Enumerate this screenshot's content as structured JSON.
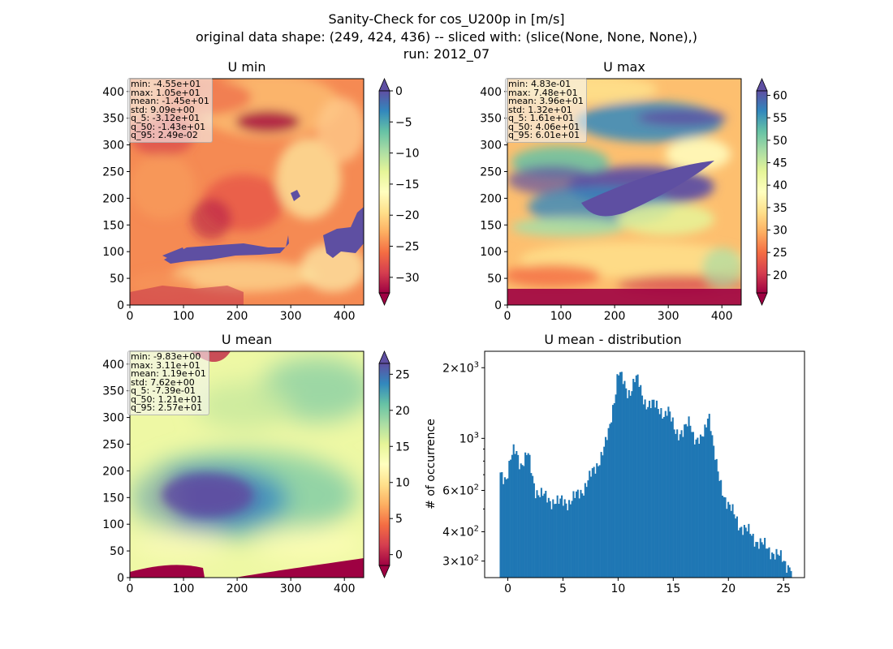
{
  "figure": {
    "suptitle": [
      "Sanity-Check for cos_U200p in [m/s]",
      "original data shape: (249, 424, 436) -- sliced with: (slice(None, None, None),)",
      "run: 2012_07"
    ]
  },
  "colors": {
    "spectral_stops": [
      "#9e0142",
      "#d53e4f",
      "#f46d43",
      "#fdae61",
      "#fee08b",
      "#ffffbf",
      "#e6f598",
      "#abdda4",
      "#66c2a5",
      "#3288bd",
      "#5e4fa2"
    ],
    "hist_bar": "#1f77b4",
    "axes_edge": "#000000"
  },
  "chart_data": [
    {
      "id": "umin",
      "type": "heatmap",
      "title": "U min",
      "xlim": [
        0,
        436
      ],
      "ylim": [
        0,
        424
      ],
      "xticks": [
        0,
        100,
        200,
        300,
        400
      ],
      "yticks": [
        0,
        50,
        100,
        150,
        200,
        250,
        300,
        350,
        400
      ],
      "colormap": "Spectral",
      "colorbar": {
        "vmin": -32.5,
        "vmax": 0,
        "ticks": [
          0,
          -5,
          -10,
          -15,
          -20,
          -25,
          -30
        ],
        "tick_labels": [
          "0",
          "−5",
          "−10",
          "−15",
          "−20",
          "−25",
          "−30"
        ],
        "extend": "both"
      },
      "stats": [
        "min: -4.55e+01",
        "max: 1.05e+01",
        "mean: -1.45e+01",
        "std: 9.09e+00",
        "q_5: -3.12e+01",
        "q_50: -1.43e+01",
        "q_95: 2.49e-02"
      ]
    },
    {
      "id": "umax",
      "type": "heatmap",
      "title": "U max",
      "xlim": [
        0,
        436
      ],
      "ylim": [
        0,
        424
      ],
      "xticks": [
        0,
        100,
        200,
        300,
        400
      ],
      "yticks": [
        0,
        50,
        100,
        150,
        200,
        250,
        300,
        350,
        400
      ],
      "colormap": "Spectral",
      "colorbar": {
        "vmin": 16,
        "vmax": 61,
        "ticks": [
          60,
          55,
          50,
          45,
          40,
          35,
          30,
          25,
          20
        ],
        "tick_labels": [
          "60",
          "55",
          "50",
          "45",
          "40",
          "35",
          "30",
          "25",
          "20"
        ],
        "extend": "both"
      },
      "stats": [
        "min: 4.83e-01",
        "max: 7.48e+01",
        "mean: 3.96e+01",
        "std: 1.32e+01",
        "q_5: 1.61e+01",
        "q_50: 4.06e+01",
        "q_95: 6.01e+01"
      ]
    },
    {
      "id": "umean",
      "type": "heatmap",
      "title": "U mean",
      "xlim": [
        0,
        436
      ],
      "ylim": [
        0,
        424
      ],
      "xticks": [
        0,
        100,
        200,
        300,
        400
      ],
      "yticks": [
        0,
        50,
        100,
        150,
        200,
        250,
        300,
        350,
        400
      ],
      "colormap": "Spectral",
      "colorbar": {
        "vmin": -1.5,
        "vmax": 26.5,
        "ticks": [
          25,
          20,
          15,
          10,
          5,
          0
        ],
        "tick_labels": [
          "25",
          "20",
          "15",
          "10",
          "5",
          "0"
        ],
        "extend": "both"
      },
      "stats": [
        "min: -9.83e+00",
        "max: 3.11e+01",
        "mean: 1.19e+01",
        "std: 7.62e+00",
        "q_5: -7.39e-01",
        "q_50: 1.21e+01",
        "q_95: 2.57e+01"
      ]
    },
    {
      "id": "hist",
      "type": "bar",
      "title": "U mean - distribution",
      "ylabel": "# of occurrence",
      "yscale": "log",
      "xlim": [
        -2.1,
        26.9
      ],
      "ylim": [
        255,
        2350
      ],
      "xticks": [
        0,
        5,
        10,
        15,
        20,
        25
      ],
      "yticks": [
        {
          "value": 2000,
          "base": "2×10",
          "exp": "3"
        },
        {
          "value": 1000,
          "base": "10",
          "exp": "3"
        },
        {
          "value": 600,
          "base": "6×10",
          "exp": "2"
        },
        {
          "value": 400,
          "base": "4×10",
          "exp": "2"
        },
        {
          "value": 300,
          "base": "3×10",
          "exp": "2"
        }
      ],
      "minor_yticks": [
        500,
        700,
        800,
        900
      ],
      "x": [
        [
          -0.74,
          720
        ],
        [
          -0.12,
          680
        ],
        [
          0.25,
          800
        ],
        [
          0.55,
          880
        ],
        [
          0.8,
          880
        ],
        [
          1.0,
          820
        ],
        [
          1.2,
          780
        ],
        [
          1.5,
          800
        ],
        [
          1.8,
          860
        ],
        [
          2.0,
          780
        ],
        [
          2.2,
          700
        ],
        [
          2.5,
          610
        ],
        [
          2.8,
          585
        ],
        [
          3.2,
          565
        ],
        [
          3.6,
          555
        ],
        [
          4.0,
          545
        ],
        [
          4.3,
          540
        ],
        [
          4.6,
          525
        ],
        [
          4.9,
          540
        ],
        [
          5.2,
          545
        ],
        [
          5.5,
          535
        ],
        [
          5.8,
          545
        ],
        [
          6.1,
          560
        ],
        [
          6.4,
          580
        ],
        [
          6.8,
          610
        ],
        [
          7.2,
          650
        ],
        [
          7.6,
          700
        ],
        [
          8.0,
          760
        ],
        [
          8.4,
          840
        ],
        [
          8.8,
          920
        ],
        [
          9.2,
          1080
        ],
        [
          9.5,
          1350
        ],
        [
          9.8,
          1650
        ],
        [
          10.0,
          1950
        ],
        [
          10.3,
          1800
        ],
        [
          10.6,
          1650
        ],
        [
          10.9,
          1560
        ],
        [
          11.2,
          1650
        ],
        [
          11.5,
          1800
        ],
        [
          11.8,
          1750
        ],
        [
          12.1,
          1550
        ],
        [
          12.4,
          1450
        ],
        [
          12.8,
          1400
        ],
        [
          13.2,
          1380
        ],
        [
          13.6,
          1360
        ],
        [
          14.0,
          1320
        ],
        [
          14.2,
          1250
        ],
        [
          14.5,
          1300
        ],
        [
          14.8,
          1200
        ],
        [
          15.1,
          1120
        ],
        [
          15.5,
          1060
        ],
        [
          15.9,
          1040
        ],
        [
          16.2,
          1120
        ],
        [
          16.5,
          1200
        ],
        [
          16.8,
          1060
        ],
        [
          17.1,
          980
        ],
        [
          17.5,
          960
        ],
        [
          17.8,
          1050
        ],
        [
          18.0,
          1180
        ],
        [
          18.2,
          1320
        ],
        [
          18.4,
          1160
        ],
        [
          18.6,
          940
        ],
        [
          18.9,
          760
        ],
        [
          19.2,
          660
        ],
        [
          19.6,
          580
        ],
        [
          20.0,
          520
        ],
        [
          20.5,
          470
        ],
        [
          21.0,
          430
        ],
        [
          21.5,
          410
        ],
        [
          22.0,
          390
        ],
        [
          22.5,
          370
        ],
        [
          23.0,
          355
        ],
        [
          23.5,
          340
        ],
        [
          24.0,
          330
        ],
        [
          24.5,
          315
        ],
        [
          25.0,
          300
        ],
        [
          25.4,
          290
        ],
        [
          25.74,
          285
        ]
      ]
    }
  ]
}
